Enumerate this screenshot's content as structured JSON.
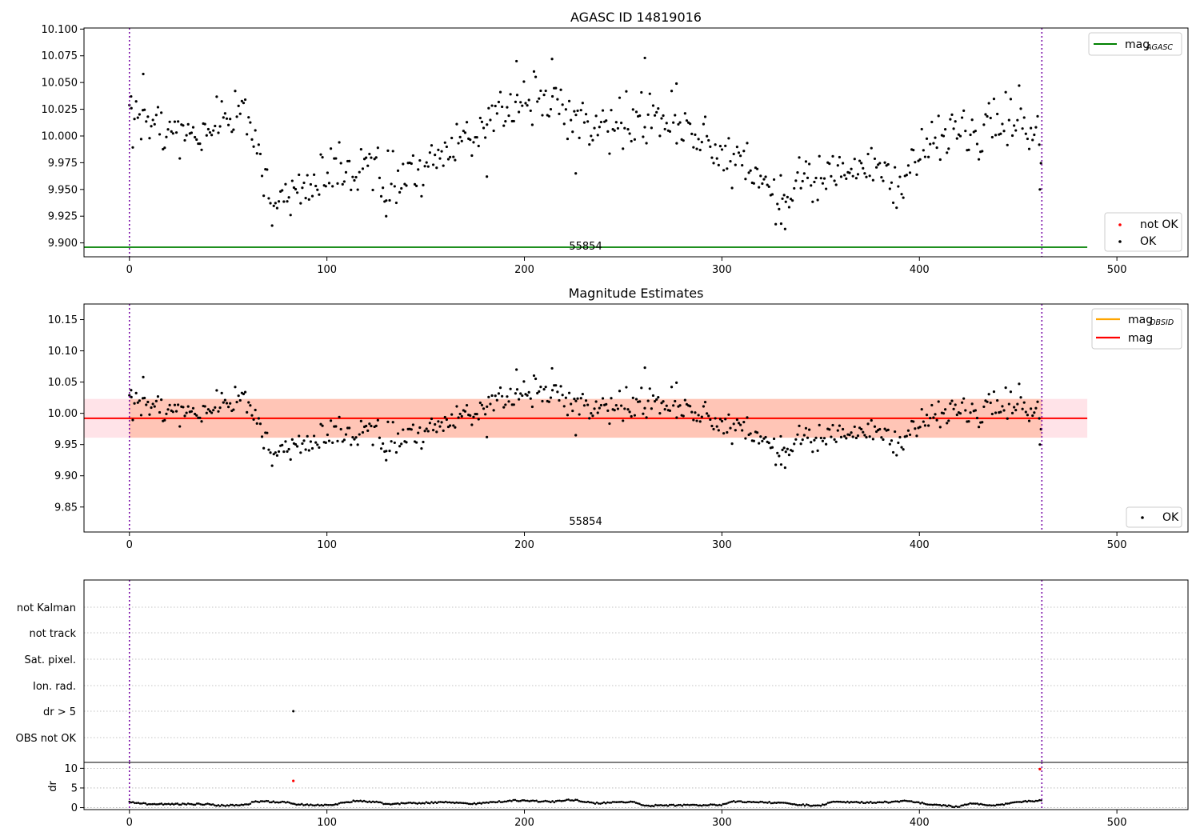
{
  "chart_data": [
    {
      "type": "scatter",
      "title": "AGASC ID 14819016",
      "xlim": [
        -23,
        536
      ],
      "ylim": [
        9.887,
        10.101
      ],
      "x_ticks": [
        0,
        100,
        200,
        300,
        400,
        500
      ],
      "y_ticks": [
        9.9,
        9.925,
        9.95,
        9.975,
        10.0,
        10.025,
        10.05,
        10.075,
        10.1
      ],
      "legend_lines": [
        {
          "name": "mag",
          "subscript": "AGASC",
          "color": "#008000",
          "placement": "top-right"
        }
      ],
      "legend_points": [
        {
          "name": "not OK",
          "color": "#ff0000"
        },
        {
          "name": "OK",
          "color": "#000000"
        }
      ],
      "legend_points_placement": "lower-right",
      "mag_agasc": 9.896,
      "obsid_boundaries": [
        0,
        462
      ],
      "obsid_label": "55854",
      "obsid_label_x": 231,
      "series": [
        {
          "name": "OK",
          "color": "#000000"
        }
      ]
    },
    {
      "type": "scatter",
      "title": "Magnitude Estimates",
      "xlim": [
        -23,
        536
      ],
      "ylim": [
        9.81,
        10.175
      ],
      "x_ticks": [
        0,
        100,
        200,
        300,
        400,
        500
      ],
      "y_ticks": [
        9.85,
        9.9,
        9.95,
        10.0,
        10.05,
        10.1,
        10.15
      ],
      "legend_lines": [
        {
          "name": "mag",
          "subscript": "OBSID",
          "color": "#ffa500"
        },
        {
          "name": "mag",
          "color": "#ff0000"
        }
      ],
      "legend_points": [
        {
          "name": "OK",
          "color": "#000000"
        }
      ],
      "mag_mean": 9.992,
      "mag_band": [
        9.961,
        10.023
      ],
      "band_colors": {
        "obsid": "#ffa07a",
        "global": "#ffc0cb"
      },
      "obsid_boundaries": [
        0,
        462
      ],
      "obsid_label": "55854",
      "obsid_label_x": 231
    },
    {
      "type": "scatter",
      "title": "",
      "xlim": [
        -23,
        536
      ],
      "categories": [
        "not Kalman",
        "not track",
        "Sat. pixel.",
        "Ion. rad.",
        "dr > 5",
        "OBS not OK"
      ],
      "flagged": [
        {
          "category": "dr > 5",
          "x": 83
        }
      ],
      "obsid_boundaries": [
        0,
        462
      ]
    },
    {
      "type": "scatter",
      "title": "",
      "xlim": [
        -23,
        536
      ],
      "ylim": [
        -0.5,
        11.5
      ],
      "y_ticks": [
        0,
        5,
        10
      ],
      "x_ticks": [
        0,
        100,
        200,
        300,
        400,
        500
      ],
      "ylabel": "dr",
      "outliers": [
        {
          "x": 83,
          "y": 6.8,
          "color": "#ff0000"
        },
        {
          "x": 461,
          "y": 9.8,
          "color": "#ff0000"
        }
      ],
      "obsid_boundaries": [
        0,
        462
      ]
    }
  ]
}
